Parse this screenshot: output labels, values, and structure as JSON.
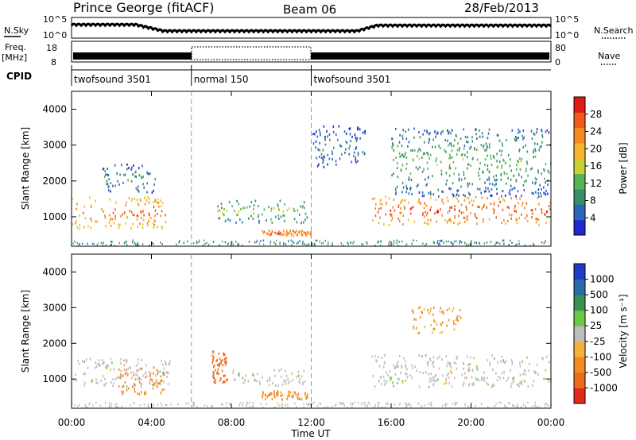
{
  "header": {
    "station": "Prince George (fitACF)",
    "beam": "Beam 06",
    "date": "28/Feb/2013"
  },
  "strips": {
    "nsky_label": "N.Sky",
    "nsearch_label": "N.Search",
    "freq_label": "Freq.",
    "freq_unit": "[MHz]",
    "nave_label": "Nave",
    "cpid_label": "CPID",
    "left_ticks": {
      "n_top": "10^5",
      "n_bot": "10^0",
      "f_top": "18",
      "f_bot": "8"
    },
    "right_ticks": {
      "n_top": "10^5",
      "n_bot": "10^0",
      "f_top": "80",
      "f_bot": "0"
    }
  },
  "cpid_segments": [
    {
      "label": "twofsound 3501",
      "start": 0,
      "end": 6
    },
    {
      "label": "normal 150",
      "start": 6,
      "end": 12
    },
    {
      "label": "twofsound 3501",
      "start": 12,
      "end": 24
    }
  ],
  "colors": {
    "power": [
      "#1e2ad0",
      "#2b67b8",
      "#3a8f6a",
      "#59b25a",
      "#c9d02f",
      "#f6b62d",
      "#f58a1f",
      "#ef5a1a",
      "#e01a16"
    ],
    "velocity": [
      "#1e3cc8",
      "#2c6aa8",
      "#3a9055",
      "#6cc845",
      "#bdbdbd",
      "#f2b23c",
      "#f08a22",
      "#eb6a1c",
      "#e12a18"
    ]
  },
  "axes": {
    "time_label": "Time UT",
    "range_label": "Slant Range [km]",
    "time_ticks": [
      "00:00",
      "04:00",
      "08:00",
      "12:00",
      "16:00",
      "20:00",
      "00:00"
    ],
    "range_ticks": [
      "1000",
      "2000",
      "3000",
      "4000"
    ]
  },
  "power_scale": {
    "title": "Power [dB]",
    "ticks": [
      "4",
      "8",
      "12",
      "16",
      "20",
      "24",
      "28"
    ]
  },
  "velocity_scale": {
    "title": "Velocity [m s⁻¹]",
    "ticks": [
      "1000",
      "500",
      "100",
      "25",
      "-25",
      "-100",
      "-500",
      "-1000"
    ]
  },
  "chart_data": [
    {
      "type": "heatmap",
      "title": "Power",
      "x_label": "Time UT",
      "y_label": "Slant Range [km]",
      "xlim": [
        0,
        24
      ],
      "ylim": [
        180,
        4500
      ],
      "colorbar": {
        "label": "Power [dB]",
        "ticks": [
          4,
          8,
          12,
          16,
          20,
          24,
          28
        ],
        "range": [
          0,
          30
        ]
      },
      "features": [
        {
          "t0": 0.0,
          "t1": 4.7,
          "r0": 700,
          "r1": 1600,
          "value": 24
        },
        {
          "t0": 1.5,
          "t1": 4.2,
          "r0": 1700,
          "r1": 2500,
          "value": 10
        },
        {
          "t0": 7.3,
          "t1": 11.8,
          "r0": 850,
          "r1": 1500,
          "value": 14
        },
        {
          "t0": 9.5,
          "t1": 12.0,
          "r0": 500,
          "r1": 650,
          "value": 26
        },
        {
          "t0": 12.0,
          "t1": 14.7,
          "r0": 2400,
          "r1": 3600,
          "value": 8
        },
        {
          "t0": 15.0,
          "t1": 24.0,
          "r0": 800,
          "r1": 1600,
          "value": 26
        },
        {
          "t0": 16.0,
          "t1": 24.0,
          "r0": 1600,
          "r1": 3500,
          "value": 12
        }
      ]
    },
    {
      "type": "heatmap",
      "title": "Velocity",
      "x_label": "Time UT",
      "y_label": "Slant Range [km]",
      "xlim": [
        0,
        24
      ],
      "ylim": [
        180,
        4500
      ],
      "colorbar": {
        "label": "Velocity [m s-1]",
        "ticks": [
          1000,
          500,
          100,
          25,
          -25,
          -100,
          -500,
          -1000
        ]
      },
      "features": [
        {
          "t0": 0.0,
          "t1": 5.0,
          "r0": 800,
          "r1": 1600,
          "value": 0
        },
        {
          "t0": 2.3,
          "t1": 4.7,
          "r0": 600,
          "r1": 1400,
          "value": -150
        },
        {
          "t0": 7.0,
          "t1": 7.8,
          "r0": 900,
          "r1": 1800,
          "value": -300
        },
        {
          "t0": 7.8,
          "t1": 11.8,
          "r0": 850,
          "r1": 1300,
          "value": 0
        },
        {
          "t0": 9.5,
          "t1": 11.8,
          "r0": 450,
          "r1": 700,
          "value": -100
        },
        {
          "t0": 15.0,
          "t1": 24.0,
          "r0": 800,
          "r1": 1700,
          "value": 0
        },
        {
          "t0": 17.0,
          "t1": 19.5,
          "r0": 2300,
          "r1": 3100,
          "value": -60
        }
      ]
    }
  ]
}
